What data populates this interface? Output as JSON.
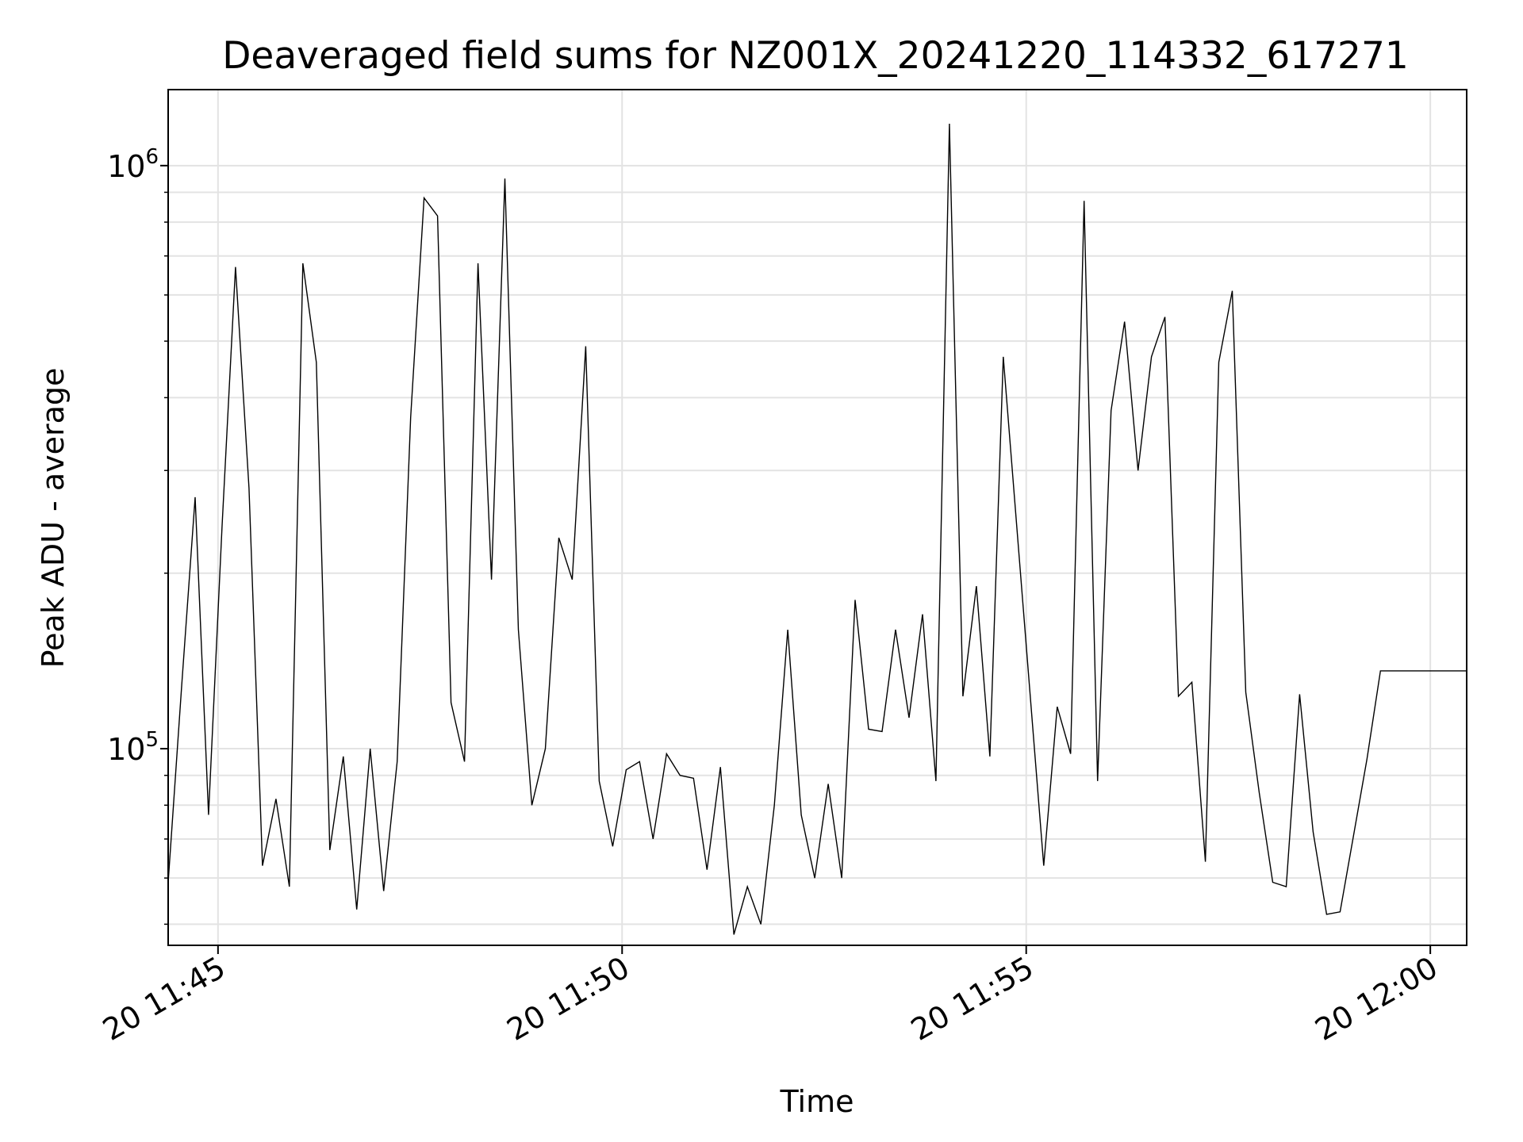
{
  "chart_data": {
    "type": "line",
    "title": "Deaveraged field sums for NZ001X_20241220_114332_617271",
    "xlabel": "Time",
    "ylabel": "Peak ADU - average",
    "yscale": "log",
    "ylim": [
      46000,
      1350000
    ],
    "xlim": [
      "11:44:23",
      "12:00:27"
    ],
    "grid": true,
    "line_color": "#000000",
    "x_ticks": [
      {
        "t": "11:45:00",
        "label": "20 11:45"
      },
      {
        "t": "11:50:00",
        "label": "20 11:50"
      },
      {
        "t": "11:55:00",
        "label": "20 11:55"
      },
      {
        "t": "12:00:00",
        "label": "20 12:00"
      }
    ],
    "y_ticks": [
      {
        "value": 100000,
        "base": "10",
        "exp": "5"
      },
      {
        "value": 1000000,
        "base": "10",
        "exp": "6"
      }
    ],
    "series": [
      {
        "x": [
          "11:44:23",
          "11:44:33",
          "11:44:43",
          "11:44:53",
          "11:45:03",
          "11:45:13",
          "11:45:23",
          "11:45:33",
          "11:45:43",
          "11:45:53",
          "11:46:03",
          "11:46:13",
          "11:46:23",
          "11:46:33",
          "11:46:43",
          "11:46:53",
          "11:47:03",
          "11:47:13",
          "11:47:23",
          "11:47:33",
          "11:47:43",
          "11:47:53",
          "11:48:03",
          "11:48:13",
          "11:48:23",
          "11:48:33",
          "11:48:43",
          "11:48:53",
          "11:49:03",
          "11:49:13",
          "11:49:23",
          "11:49:33",
          "11:49:43",
          "11:49:53",
          "11:50:03",
          "11:50:13",
          "11:50:23",
          "11:50:33",
          "11:50:43",
          "11:50:53",
          "11:51:03",
          "11:51:13",
          "11:51:23",
          "11:51:33",
          "11:51:43",
          "11:51:53",
          "11:52:03",
          "11:52:13",
          "11:52:23",
          "11:52:33",
          "11:52:43",
          "11:52:53",
          "11:53:03",
          "11:53:13",
          "11:53:23",
          "11:53:33",
          "11:53:43",
          "11:53:53",
          "11:54:03",
          "11:54:13",
          "11:54:23",
          "11:54:33",
          "11:54:43",
          "11:55:13",
          "11:55:23",
          "11:55:33",
          "11:55:43",
          "11:55:53",
          "11:56:03",
          "11:56:13",
          "11:56:23",
          "11:56:33",
          "11:56:43",
          "11:56:53",
          "11:57:03",
          "11:57:13",
          "11:57:23",
          "11:57:33",
          "11:57:43",
          "11:57:53",
          "11:58:03",
          "11:58:13",
          "11:58:23",
          "11:58:33",
          "11:58:43",
          "11:58:53",
          "11:59:03",
          "11:59:13",
          "11:59:23",
          "11:59:33",
          "11:59:43",
          "11:59:53",
          "12:00:27"
        ],
        "values": [
          59000,
          128000,
          270000,
          77000,
          240000,
          670000,
          280000,
          63000,
          82000,
          58000,
          680000,
          460000,
          67000,
          97000,
          53000,
          100000,
          57000,
          95000,
          370000,
          880000,
          820000,
          120000,
          95000,
          680000,
          195000,
          950000,
          160000,
          80000,
          100000,
          230000,
          195000,
          490000,
          88000,
          68000,
          92000,
          95000,
          70000,
          98000,
          90000,
          89000,
          62000,
          93000,
          48000,
          58000,
          50000,
          80000,
          160000,
          77000,
          60000,
          87000,
          60000,
          180000,
          108000,
          107000,
          160000,
          113000,
          170000,
          88000,
          1180000,
          123000,
          190000,
          97000,
          470000,
          63000,
          118000,
          98000,
          870000,
          88000,
          380000,
          540000,
          300000,
          470000,
          550000,
          123000,
          130000,
          64000,
          460000,
          610000,
          125000,
          84000,
          59000,
          58000,
          124000,
          72000,
          52000,
          52500,
          71000,
          96000,
          136000,
          136000,
          136000,
          136000,
          136000
        ]
      }
    ]
  }
}
